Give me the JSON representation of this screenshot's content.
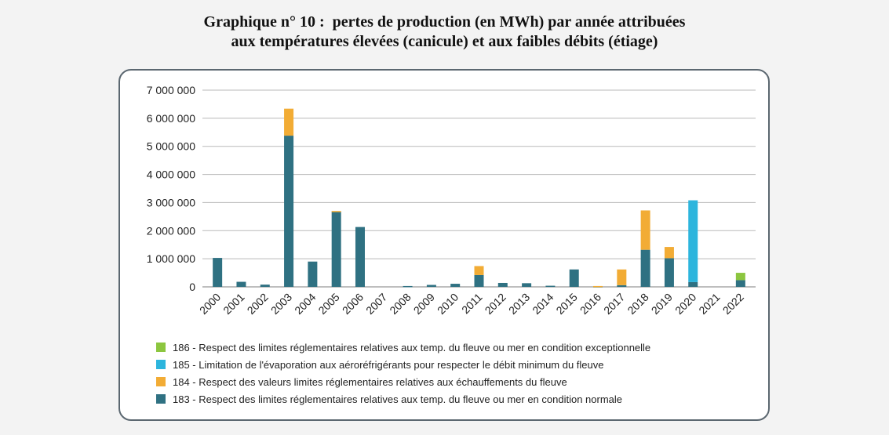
{
  "title": {
    "line1": "Graphique n° 10 :  pertes de production (en MWh) par année attribuées",
    "line2": "aux températures élevées (canicule) et aux faibles débits (étiage)"
  },
  "chart_data": {
    "type": "bar",
    "stacked": true,
    "categories": [
      "2000",
      "2001",
      "2002",
      "2003",
      "2004",
      "2005",
      "2006",
      "2007",
      "2008",
      "2009",
      "2010",
      "2011",
      "2012",
      "2013",
      "2014",
      "2015",
      "2016",
      "2017",
      "2018",
      "2019",
      "2020",
      "2021",
      "2022"
    ],
    "ylim": [
      0,
      7000000
    ],
    "yticks": [
      0,
      1000000,
      2000000,
      3000000,
      4000000,
      5000000,
      6000000,
      7000000
    ],
    "ytick_labels": [
      "0",
      "1 000 000",
      "2 000 000",
      "3 000 000",
      "4 000 000",
      "5 000 000",
      "6 000 000",
      "7 000 000"
    ],
    "grid": true,
    "legend_position": "bottom",
    "series": [
      {
        "name": "183 - Respect des limites réglementaires relatives aux temp. du fleuve ou mer en condition normale",
        "color": "#2f7182",
        "values": [
          1030000,
          180000,
          80000,
          5380000,
          900000,
          2680000,
          2130000,
          0,
          30000,
          70000,
          110000,
          420000,
          140000,
          130000,
          40000,
          620000,
          20000,
          60000,
          1320000,
          1020000,
          170000,
          0,
          240000
        ]
      },
      {
        "name": "184 - Respect des valeurs limites réglementaires relatives aux échauffements du fleuve",
        "color": "#f2ac35",
        "values": [
          0,
          0,
          0,
          960000,
          0,
          20000,
          0,
          0,
          0,
          0,
          0,
          320000,
          0,
          0,
          0,
          0,
          10000,
          560000,
          1400000,
          400000,
          0,
          0,
          0
        ]
      },
      {
        "name": "185 - Limitation de l'évaporation aux aéroréfrigérants pour respecter le débit minimum du fleuve",
        "color": "#2cb5dd",
        "values": [
          0,
          0,
          0,
          0,
          0,
          0,
          0,
          0,
          0,
          0,
          0,
          0,
          0,
          0,
          0,
          0,
          0,
          0,
          0,
          0,
          2910000,
          0,
          0
        ]
      },
      {
        "name": "186 - Respect des limites réglementaires relatives aux temp. du fleuve ou mer en condition exceptionnelle",
        "color": "#8cc63f",
        "values": [
          0,
          0,
          0,
          0,
          0,
          0,
          0,
          0,
          0,
          0,
          0,
          0,
          0,
          0,
          0,
          0,
          0,
          0,
          0,
          0,
          0,
          0,
          260000
        ]
      }
    ],
    "legend_order": [
      3,
      2,
      1,
      0
    ]
  }
}
